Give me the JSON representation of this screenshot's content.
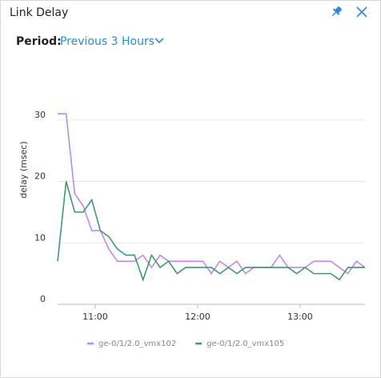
{
  "header": {
    "title": "Link Delay"
  },
  "period": {
    "label": "Period:",
    "value": "Previous 3 Hours"
  },
  "chart_data": {
    "type": "line",
    "ylabel": "delay (msec)",
    "x": [
      "10:38",
      "10:43",
      "10:48",
      "10:53",
      "10:58",
      "11:03",
      "11:08",
      "11:13",
      "11:18",
      "11:23",
      "11:28",
      "11:33",
      "11:38",
      "11:43",
      "11:48",
      "11:53",
      "11:58",
      "12:03",
      "12:08",
      "12:13",
      "12:18",
      "12:23",
      "12:28",
      "12:33",
      "12:38",
      "12:43",
      "12:48",
      "12:53",
      "12:58",
      "13:03",
      "13:08",
      "13:13",
      "13:18",
      "13:23",
      "13:28",
      "13:33",
      "13:38"
    ],
    "xlim": [
      "10:38",
      "13:38"
    ],
    "xticks": [
      "11:00",
      "12:00",
      "13:00"
    ],
    "ylim": [
      0,
      40
    ],
    "yticks": [
      0,
      10,
      20,
      30
    ],
    "grid": true,
    "series": [
      {
        "name": "ge-0/1/2.0_vmx102",
        "color": "#bd8ae8",
        "values": [
          31,
          31,
          18,
          16,
          12,
          12,
          9,
          7,
          7,
          7,
          8,
          6,
          8,
          7,
          7,
          7,
          7,
          7,
          5,
          7,
          6,
          7,
          5,
          6,
          6,
          6,
          8,
          6,
          6,
          6,
          7,
          7,
          7,
          6,
          5,
          7,
          6
        ]
      },
      {
        "name": "ge-0/1/2.0_vmx105",
        "color": "#3d9a70",
        "values": [
          7,
          20,
          15,
          15,
          17,
          12,
          11,
          9,
          8,
          8,
          4,
          8,
          6,
          7,
          5,
          6,
          6,
          6,
          6,
          5,
          6,
          5,
          6,
          6,
          6,
          6,
          6,
          6,
          5,
          6,
          5,
          5,
          5,
          4,
          6,
          6,
          6
        ]
      }
    ]
  }
}
